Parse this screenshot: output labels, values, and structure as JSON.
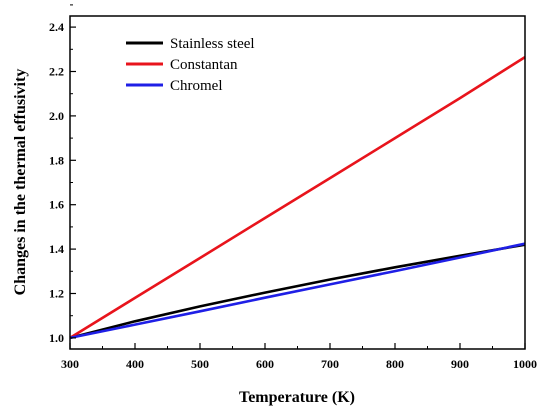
{
  "chart_data": {
    "type": "line",
    "title": "",
    "xlabel": "Temperature (K)",
    "ylabel": "Changes in the thermal effusivity",
    "xlim": [
      300,
      1000
    ],
    "ylim": [
      0.95,
      2.45
    ],
    "xticks": [
      300,
      400,
      500,
      600,
      700,
      800,
      900,
      1000
    ],
    "yticks": [
      "1.0",
      "1.2",
      "1.4",
      "1.6",
      "1.8",
      "2.0",
      "2.2",
      "2.4"
    ],
    "grid": false,
    "legend_position": "top-left",
    "series": [
      {
        "name": "Stainless steel",
        "color": "#000000",
        "x": [
          300,
          400,
          500,
          600,
          700,
          800,
          900,
          1000
        ],
        "y": [
          1.0,
          1.075,
          1.142,
          1.204,
          1.263,
          1.318,
          1.37,
          1.42
        ]
      },
      {
        "name": "Constantan",
        "color": "#e8141c",
        "x": [
          300,
          400,
          500,
          600,
          700,
          800,
          900,
          1000
        ],
        "y": [
          1.0,
          1.18,
          1.36,
          1.54,
          1.72,
          1.9,
          2.08,
          2.265
        ]
      },
      {
        "name": "Chromel",
        "color": "#1f1fe6",
        "x": [
          300,
          400,
          500,
          600,
          700,
          800,
          900,
          1000
        ],
        "y": [
          1.0,
          1.06,
          1.12,
          1.181,
          1.241,
          1.301,
          1.362,
          1.425
        ]
      }
    ]
  }
}
